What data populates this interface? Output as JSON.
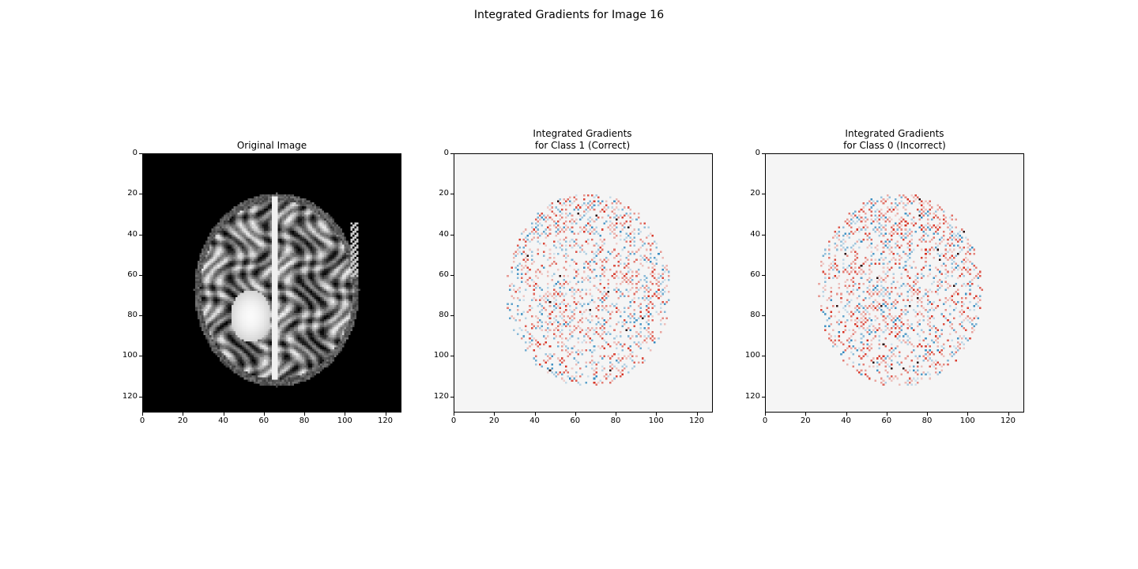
{
  "figure": {
    "suptitle": "Integrated Gradients for Image 16"
  },
  "panels": [
    {
      "title_lines": [
        "Original Image"
      ],
      "kind": "image-gray"
    },
    {
      "title_lines": [
        "Integrated Gradients",
        "for Class 1 (Correct)"
      ],
      "kind": "attribution"
    },
    {
      "title_lines": [
        "Integrated Gradients",
        "for Class 0 (Incorrect)"
      ],
      "kind": "attribution"
    }
  ],
  "colors": {
    "background_attr": "#f5f5f5",
    "positive": "#d7301f",
    "negative": "#2b8cbe",
    "image_bg": "#000000"
  },
  "chart_data": [
    {
      "type": "heatmap",
      "title": "Original Image",
      "xlim": [
        0,
        128
      ],
      "ylim": [
        128,
        0
      ],
      "xticks": [
        "0",
        "20",
        "40",
        "60",
        "80",
        "100",
        "120"
      ],
      "yticks": [
        "0",
        "20",
        "40",
        "60",
        "80",
        "100",
        "120"
      ],
      "colormap": "gray"
    },
    {
      "type": "heatmap",
      "title": "Integrated Gradients for Class 1 (Correct)",
      "xlim": [
        0,
        128
      ],
      "ylim": [
        128,
        0
      ],
      "xticks": [
        "0",
        "20",
        "40",
        "60",
        "80",
        "100",
        "120"
      ],
      "yticks": [
        "0",
        "20",
        "40",
        "60",
        "80",
        "100",
        "120"
      ],
      "colormap": "RdBu_r"
    },
    {
      "type": "heatmap",
      "title": "Integrated Gradients for Class 0 (Incorrect)",
      "xlim": [
        0,
        128
      ],
      "ylim": [
        128,
        0
      ],
      "xticks": [
        "0",
        "20",
        "40",
        "60",
        "80",
        "100",
        "120"
      ],
      "yticks": [
        "0",
        "20",
        "40",
        "60",
        "80",
        "100",
        "120"
      ],
      "colormap": "RdBu_r"
    }
  ]
}
